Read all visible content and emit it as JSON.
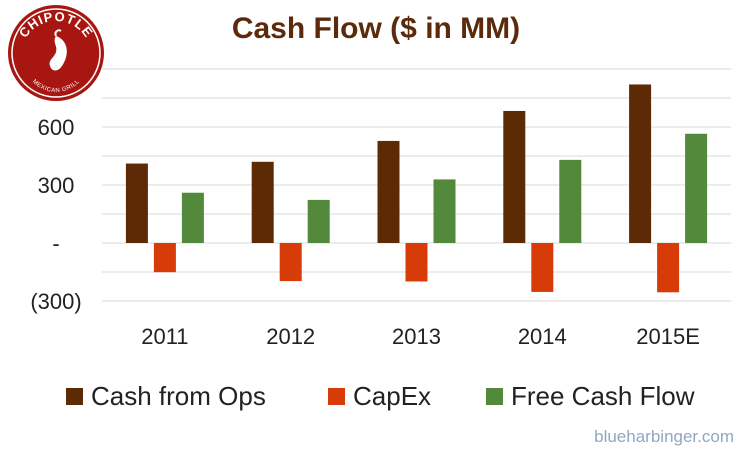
{
  "logo": {
    "name": "CHIPOTLE",
    "tagline": "MEXICAN GRILL",
    "color": "#a81612"
  },
  "watermark": "blueharbinger.com",
  "chart_data": {
    "type": "bar",
    "title": "Cash Flow ($ in MM)",
    "categories": [
      "2011",
      "2012",
      "2013",
      "2014",
      "2015E"
    ],
    "ylim": [
      -300,
      900
    ],
    "yticks": [
      {
        "value": 600,
        "label": "600"
      },
      {
        "value": 300,
        "label": "300"
      },
      {
        "value": 0,
        "label": "-"
      },
      {
        "value": -300,
        "label": "(300)"
      }
    ],
    "grid": true,
    "legend_position": "bottom",
    "series": [
      {
        "name": "Cash from Ops",
        "color": "#5c2a04",
        "values": [
          411,
          420,
          528,
          683,
          820
        ]
      },
      {
        "name": "CapEx",
        "color": "#d63b08",
        "values": [
          -151,
          -197,
          -199,
          -253,
          -255
        ]
      },
      {
        "name": "Free Cash Flow",
        "color": "#53893a",
        "values": [
          260,
          223,
          329,
          430,
          565
        ]
      }
    ]
  }
}
